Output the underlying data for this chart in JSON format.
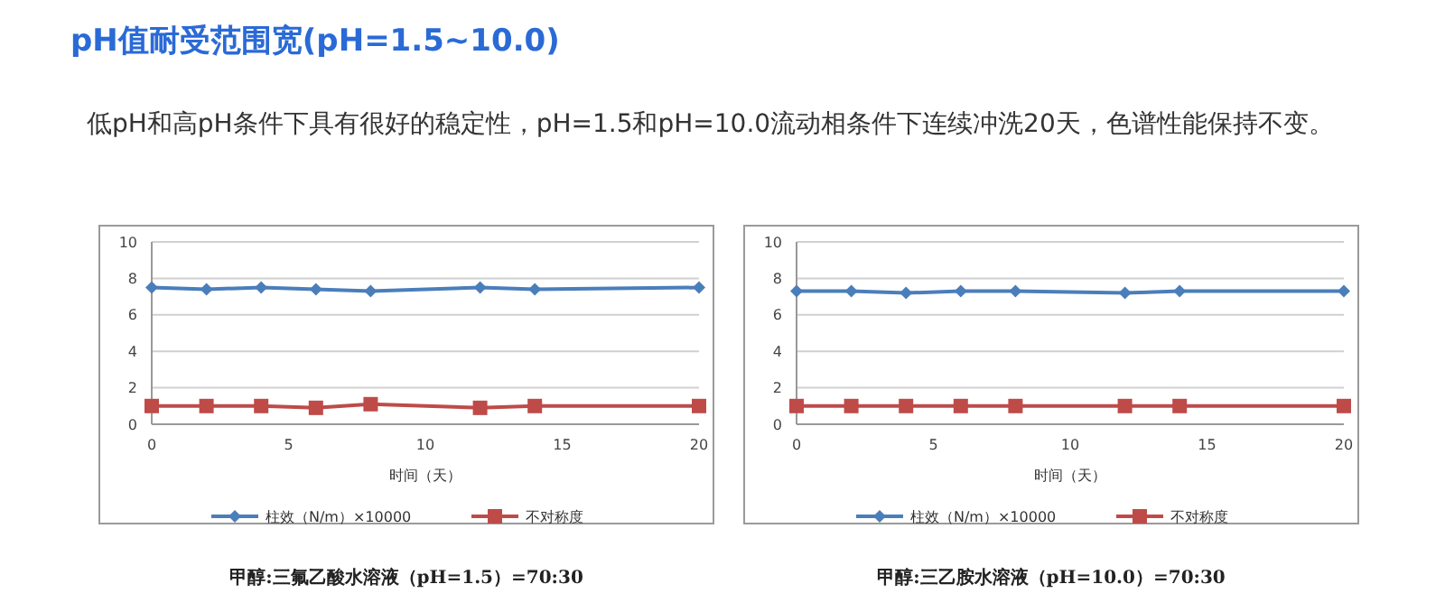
{
  "chart_data": [
    {
      "type": "other",
      "title": "pH值耐受范围宽(pH=1.5~10.0)",
      "subtitle": "低pH和高pH条件下具有很好的稳定性，pH=1.5和pH=10.0流动相条件下连续冲洗20天，色谱性能保持不变。"
    },
    {
      "type": "line",
      "title": "甲醇:三氟乙酸水溶液（pH=1.5）=70:30",
      "xlabel": "时间（天）",
      "x": [
        0,
        2,
        4,
        6,
        8,
        12,
        14,
        20
      ],
      "xlim": [
        0,
        20
      ],
      "xticks": [
        0,
        5,
        10,
        15,
        20
      ],
      "ylim": [
        0,
        10
      ],
      "yticks": [
        0,
        2,
        4,
        6,
        8,
        10
      ],
      "grid": "y",
      "legend": "bottom",
      "series": [
        {
          "name": "柱效（N/m）×10000",
          "color": "#4a7ebb",
          "marker": "diamond",
          "values": [
            7.5,
            7.4,
            7.5,
            7.4,
            7.3,
            7.5,
            7.4,
            7.5
          ]
        },
        {
          "name": "不对称度",
          "color": "#be4b48",
          "marker": "square",
          "values": [
            1.0,
            1.0,
            1.0,
            0.9,
            1.1,
            0.9,
            1.0,
            1.0
          ]
        }
      ]
    },
    {
      "type": "line",
      "title": "甲醇:三乙胺水溶液（pH=10.0）=70:30",
      "xlabel": "时间（天）",
      "x": [
        0,
        2,
        4,
        6,
        8,
        12,
        14,
        20
      ],
      "xlim": [
        0,
        20
      ],
      "xticks": [
        0,
        5,
        10,
        15,
        20
      ],
      "ylim": [
        0,
        10
      ],
      "yticks": [
        0,
        2,
        4,
        6,
        8,
        10
      ],
      "grid": "y",
      "legend": "bottom",
      "series": [
        {
          "name": "柱效（N/m）×10000",
          "color": "#4a7ebb",
          "marker": "diamond",
          "values": [
            7.3,
            7.3,
            7.2,
            7.3,
            7.3,
            7.2,
            7.3,
            7.3
          ]
        },
        {
          "name": "不对称度",
          "color": "#be4b48",
          "marker": "square",
          "values": [
            1.0,
            1.0,
            1.0,
            1.0,
            1.0,
            1.0,
            1.0,
            1.0
          ]
        }
      ]
    }
  ]
}
